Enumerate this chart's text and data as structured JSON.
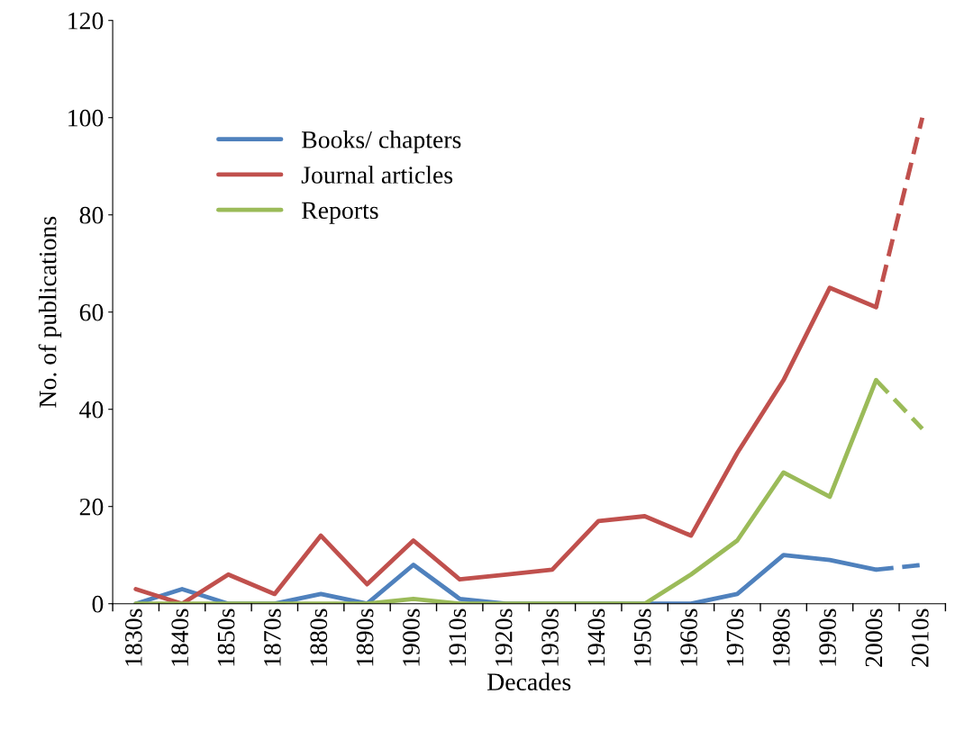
{
  "chart_data": {
    "type": "line",
    "xlabel": "Decades",
    "ylabel": "No. of publications",
    "categories": [
      "1830s",
      "1840s",
      "1850s",
      "1870s",
      "1880s",
      "1890s",
      "1900s",
      "1910s",
      "1920s",
      "1930s",
      "1940s",
      "1950s",
      "1960s",
      "1970s",
      "1980s",
      "1990s",
      "2000s",
      "2010s"
    ],
    "series": [
      {
        "name": "Books/ chapters",
        "color": "#4f81bd",
        "values": [
          0,
          3,
          0,
          0,
          2,
          0,
          8,
          1,
          0,
          0,
          0,
          0,
          0,
          2,
          10,
          9,
          7,
          null
        ]
      },
      {
        "name": "Journal articles",
        "color": "#c0504d",
        "values": [
          3,
          0,
          6,
          2,
          14,
          4,
          13,
          5,
          6,
          7,
          17,
          18,
          14,
          31,
          46,
          65,
          61,
          null
        ]
      },
      {
        "name": "Reports",
        "color": "#9bbb59",
        "values": [
          0,
          0,
          0,
          0,
          0,
          0,
          1,
          0,
          0,
          0,
          0,
          0,
          6,
          13,
          27,
          22,
          46,
          null
        ]
      },
      {
        "color": "#4f81bd",
        "line_style": "dashed",
        "values": [
          null,
          null,
          null,
          null,
          null,
          null,
          null,
          null,
          null,
          null,
          null,
          null,
          null,
          null,
          null,
          null,
          7,
          8
        ]
      },
      {
        "color": "#c0504d",
        "line_style": "dashed",
        "values": [
          null,
          null,
          null,
          null,
          null,
          null,
          null,
          null,
          null,
          null,
          null,
          null,
          null,
          null,
          null,
          null,
          61,
          100
        ]
      },
      {
        "color": "#9bbb59",
        "line_style": "dashed",
        "values": [
          null,
          null,
          null,
          null,
          null,
          null,
          null,
          null,
          null,
          null,
          null,
          null,
          null,
          null,
          null,
          null,
          46,
          36
        ]
      }
    ],
    "ylim": [
      0,
      120
    ],
    "yticks": [
      0,
      20,
      40,
      60,
      80,
      100,
      120
    ],
    "grid": false,
    "legend": "top left",
    "line_style": "solid"
  }
}
